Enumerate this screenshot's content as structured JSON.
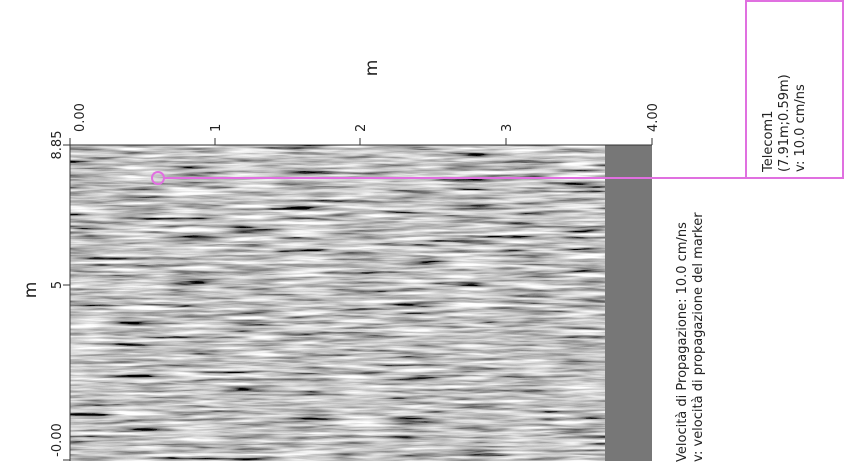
{
  "top_axis": {
    "label": "m",
    "ticks": [
      "0.00",
      "1",
      "2",
      "3",
      "4.00"
    ]
  },
  "left_axis": {
    "label": "m",
    "ticks": [
      "8.85",
      "5",
      "-0.00"
    ]
  },
  "marker": {
    "lines": [
      "Telecom1",
      "(7.91m;0.59m)",
      "v: 10.0 cm/ns"
    ]
  },
  "info": {
    "lines": [
      "Velocità di Propagazione:  10.0 cm/ns",
      "v: velocità di propagazione del marker"
    ]
  }
}
